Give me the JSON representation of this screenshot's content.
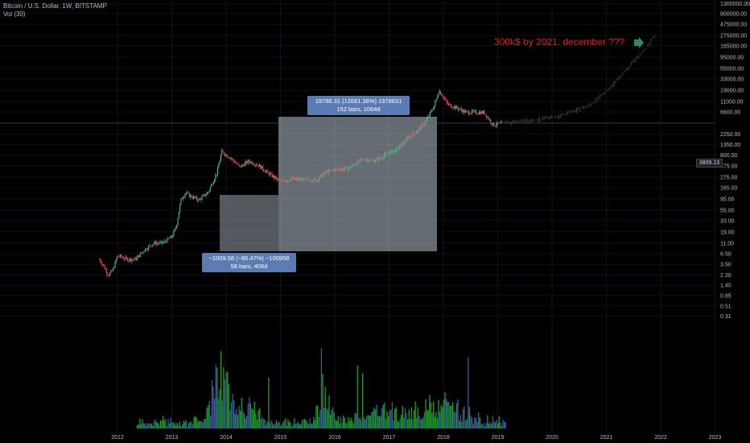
{
  "header": {
    "title": "Bitcoin / U.S. Dollar, 1W, BITSTAMP",
    "indicator": "Vol (30)"
  },
  "annotations": {
    "measure_up": {
      "line1": "19786.31 (12661.36%) 1978631",
      "line2": "152 bars, 1064d"
    },
    "measure_down": {
      "line1": "−1009.58 (−86.47%) −100958",
      "line2": "58 bars, 406d"
    },
    "note": "300k$ by 2021. december ???",
    "current_price": "3809.13"
  },
  "colors": {
    "up": "#53b987",
    "down": "#eb4d5c",
    "vol_up": "#1f9d2c",
    "vol_down": "#3b5d9e",
    "projection": "#2f6b52",
    "box": "#b8c2d1",
    "note": "#e11b1b",
    "arrow": "#2e8b57"
  },
  "chart_data": {
    "type": "line",
    "title": "Bitcoin / U.S. Dollar, 1W, BITSTAMP",
    "y_scale": "log",
    "x_ticks": [
      "2012",
      "2013",
      "2014",
      "2015",
      "2016",
      "2017",
      "2018",
      "2019",
      "2020",
      "2021",
      "2022",
      "2023"
    ],
    "y_ticks": [
      "1300000.00",
      "800000.00",
      "475000.00",
      "275000.00",
      "165000.00",
      "95000.00",
      "55000.00",
      "33000.00",
      "19000.00",
      "11000.00",
      "6600.00",
      "2250.00",
      "1350.00",
      "800.00",
      "475.00",
      "275.00",
      "165.00",
      "95.00",
      "55.00",
      "33.00",
      "19.00",
      "11.00",
      "6.50",
      "3.90",
      "2.30",
      "1.40",
      "0.85",
      "0.51",
      "0.31"
    ],
    "series": [
      {
        "values_x": [
          "2011-09",
          "2011-10",
          "2011-11",
          "2011-12",
          "2012-01",
          "2012-03",
          "2012-05",
          "2012-07",
          "2012-09",
          "2012-11",
          "2013-01",
          "2013-02",
          "2013-03",
          "2013-04",
          "2013-05",
          "2013-07",
          "2013-09",
          "2013-11",
          "2013-12",
          "2014-02",
          "2014-04",
          "2014-06",
          "2014-08",
          "2014-10",
          "2015-01",
          "2015-03",
          "2015-06",
          "2015-09",
          "2015-11",
          "2016-01",
          "2016-04",
          "2016-07",
          "2016-10",
          "2017-01",
          "2017-03",
          "2017-05",
          "2017-07",
          "2017-09",
          "2017-11",
          "2017-12",
          "2018-02",
          "2018-04",
          "2018-06",
          "2018-08",
          "2018-10",
          "2018-12",
          "2019-02"
        ],
        "values_y": [
          5,
          3.5,
          2.3,
          3,
          6,
          5,
          5,
          8,
          11,
          11,
          15,
          25,
          90,
          130,
          110,
          90,
          130,
          350,
          950,
          700,
          450,
          600,
          500,
          350,
          220,
          250,
          240,
          240,
          350,
          400,
          420,
          650,
          620,
          900,
          1100,
          1800,
          2500,
          4000,
          9000,
          19000,
          9500,
          8000,
          6500,
          6500,
          6400,
          3500,
          3800
        ]
      },
      {
        "values_x": [
          "2019-02",
          "2019-06",
          "2019-10",
          "2020-02",
          "2020-06",
          "2020-10",
          "2021-02",
          "2021-06",
          "2021-09",
          "2021-12"
        ],
        "values_y": [
          3800,
          4200,
          4500,
          5200,
          7000,
          10000,
          22000,
          60000,
          120000,
          300000
        ]
      }
    ],
    "xlabel": "",
    "ylabel": ""
  }
}
